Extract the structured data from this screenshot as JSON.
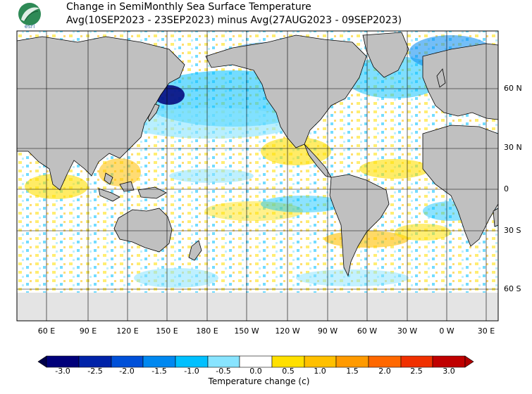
{
  "title": {
    "line1": "Change in SemiMonthly Sea Surface Temperature",
    "line2": "Avg(10SEP2023 - 23SEP2023) minus Avg(27AUG2023 - 09SEP2023)"
  },
  "logo": {
    "text": "esrl"
  },
  "map": {
    "lat_labels": [
      "60 N",
      "30 N",
      "0",
      "30 S",
      "60 S"
    ],
    "lon_labels": [
      "60 E",
      "90 E",
      "120 E",
      "150 E",
      "180 E",
      "150 W",
      "120 W",
      "90 W",
      "60 W",
      "30 W",
      "0 W",
      "30 E"
    ],
    "land_color": "#c0c0c0",
    "ice_color": "#e4e4e4"
  },
  "colorbar": {
    "ticks": [
      "-3.0",
      "-2.5",
      "-2.0",
      "-1.5",
      "-1.0",
      "-0.5",
      "0.0",
      "0.5",
      "1.0",
      "1.5",
      "2.0",
      "2.5",
      "3.0"
    ],
    "colors": [
      "#00007a",
      "#0022a8",
      "#0050d8",
      "#0088f0",
      "#00c0ff",
      "#88e4ff",
      "#ffffff",
      "#ffe000",
      "#ffc000",
      "#ff9a00",
      "#ff6800",
      "#f03000",
      "#c00000"
    ],
    "label": "Temperature change  (c)"
  }
}
